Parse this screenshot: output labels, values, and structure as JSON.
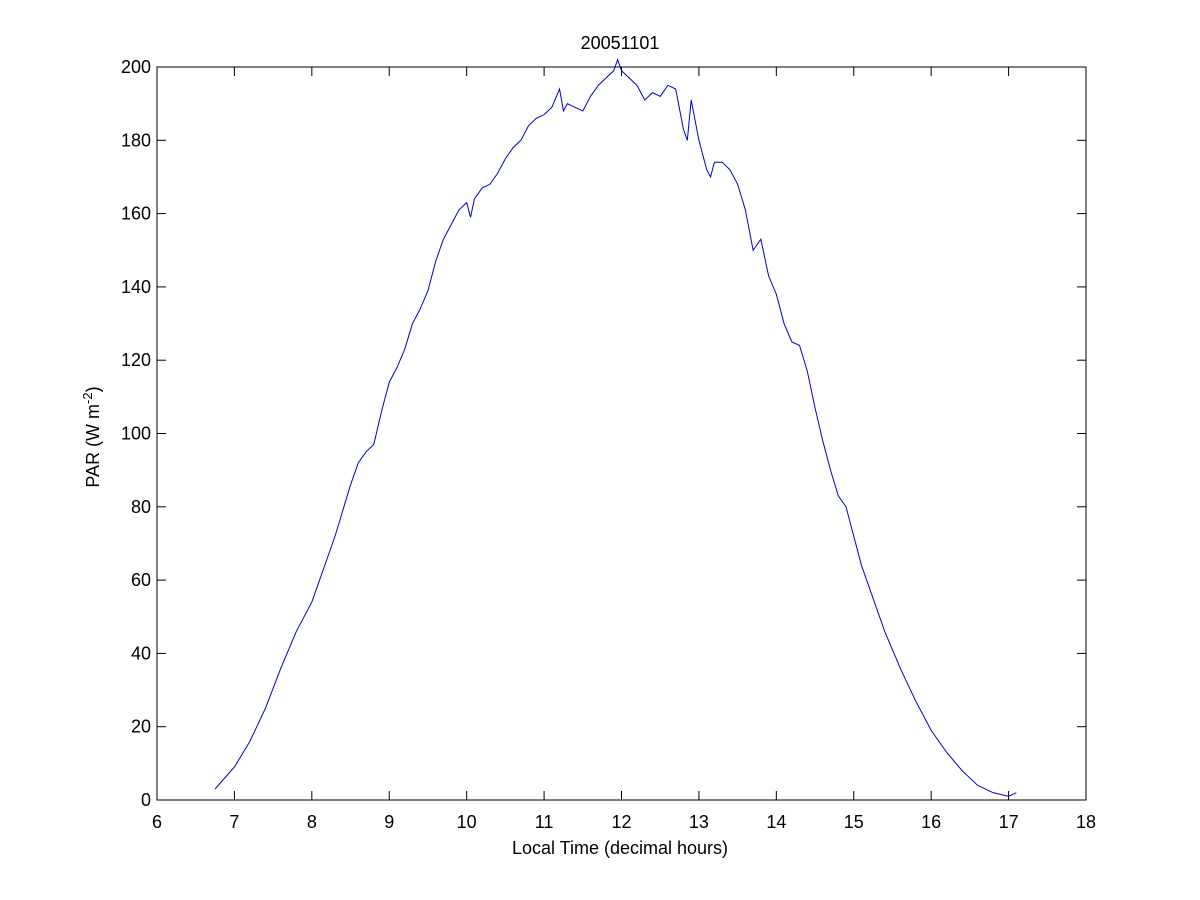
{
  "chart_data": {
    "type": "line",
    "title": "20051101",
    "xlabel": "Local Time (decimal hours)",
    "ylabel": {
      "prefix": "PAR (W m",
      "superscript": "-2",
      "suffix": ")"
    },
    "xlim": [
      6,
      18
    ],
    "ylim": [
      0,
      200
    ],
    "xticks": [
      6,
      7,
      8,
      9,
      10,
      11,
      12,
      13,
      14,
      15,
      16,
      17,
      18
    ],
    "yticks": [
      0,
      20,
      40,
      60,
      80,
      100,
      120,
      140,
      160,
      180,
      200
    ],
    "grid": false,
    "line_color": "#0000cc",
    "series": [
      {
        "x": [
          6.75,
          7.0,
          7.2,
          7.4,
          7.6,
          7.8,
          8.0,
          8.1,
          8.2,
          8.3,
          8.4,
          8.5,
          8.6,
          8.7,
          8.8,
          8.9,
          9.0,
          9.1,
          9.2,
          9.3,
          9.4,
          9.5,
          9.6,
          9.7,
          9.8,
          9.9,
          10.0,
          10.05,
          10.1,
          10.2,
          10.3,
          10.4,
          10.5,
          10.6,
          10.7,
          10.8,
          10.9,
          11.0,
          11.1,
          11.2,
          11.25,
          11.3,
          11.4,
          11.5,
          11.6,
          11.7,
          11.8,
          11.9,
          11.95,
          12.0,
          12.1,
          12.2,
          12.3,
          12.4,
          12.5,
          12.6,
          12.7,
          12.8,
          12.85,
          12.9,
          13.0,
          13.1,
          13.15,
          13.2,
          13.3,
          13.4,
          13.5,
          13.6,
          13.7,
          13.8,
          13.9,
          14.0,
          14.1,
          14.2,
          14.3,
          14.4,
          14.5,
          14.6,
          14.7,
          14.8,
          14.9,
          15.0,
          15.1,
          15.2,
          15.3,
          15.4,
          15.5,
          15.6,
          15.8,
          16.0,
          16.2,
          16.4,
          16.6,
          16.8,
          17.0,
          17.1
        ],
        "y": [
          3,
          9,
          16,
          25,
          36,
          46,
          54,
          60,
          66,
          72,
          79,
          86,
          92,
          95,
          97,
          106,
          114,
          118,
          123,
          130,
          134,
          139,
          147,
          153,
          157,
          161,
          163,
          159,
          164,
          167,
          168,
          171,
          175,
          178,
          180,
          184,
          186,
          187,
          189,
          194,
          188,
          190,
          189,
          188,
          192,
          195,
          197,
          199,
          202,
          199,
          197,
          195,
          191,
          193,
          192,
          195,
          194,
          183,
          180,
          191,
          180,
          172,
          170,
          174,
          174,
          172,
          168,
          161,
          150,
          153,
          143,
          138,
          130,
          125,
          124,
          117,
          107,
          98,
          90,
          83,
          80,
          72,
          64,
          58,
          52,
          46,
          41,
          36,
          27,
          19,
          13,
          8,
          4,
          2,
          1,
          2
        ]
      }
    ]
  }
}
